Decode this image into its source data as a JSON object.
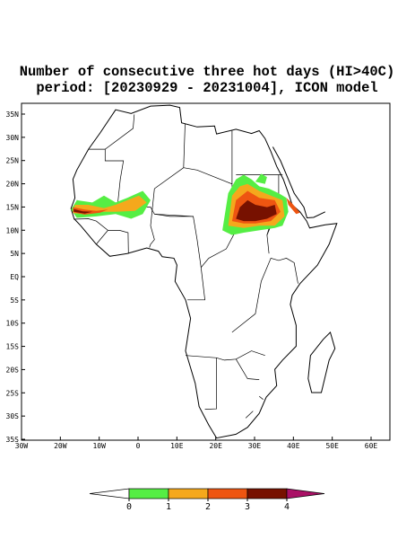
{
  "title": [
    "Number of consecutive three hot days (HI>40C)",
    "period: [20230929 - 20231004], ICON model"
  ],
  "map": {
    "lat_labels": [
      "35N",
      "30N",
      "25N",
      "20N",
      "15N",
      "10N",
      "5N",
      "EQ",
      "5S",
      "10S",
      "15S",
      "20S",
      "25S",
      "30S",
      "35S"
    ],
    "lon_labels": [
      "30W",
      "20W",
      "10W",
      "0",
      "10E",
      "20E",
      "30E",
      "40E",
      "50E",
      "60E"
    ]
  },
  "colorbar": {
    "colors": [
      "#ffffff",
      "#55ee44",
      "#f5a81c",
      "#ee5511",
      "#771100",
      "#aa1166"
    ],
    "ticks": [
      0,
      1,
      2,
      3,
      4
    ]
  }
}
